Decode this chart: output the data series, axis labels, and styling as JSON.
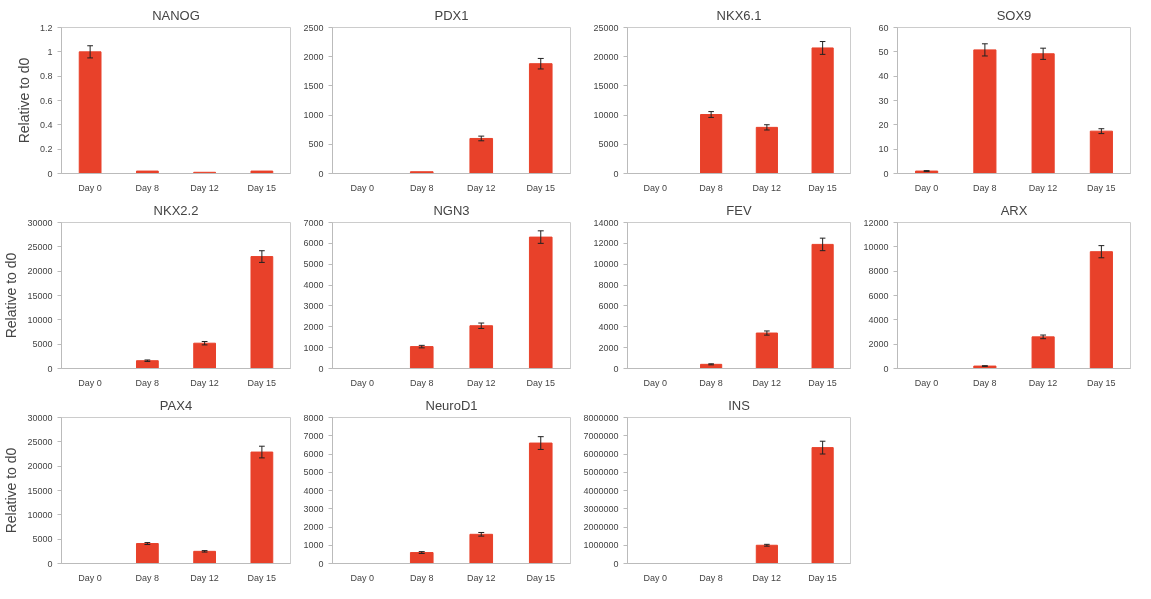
{
  "chart_data": [
    {
      "type": "bar",
      "title": "NANOG",
      "ylabel": "Relative to d0",
      "categories": [
        "Day 0",
        "Day 8",
        "Day 12",
        "Day 15"
      ],
      "values": [
        1,
        0.02,
        0.01,
        0.02
      ],
      "errors": [
        0.05,
        null,
        null,
        null
      ],
      "color": "#e8412a",
      "ylim": [
        0,
        1.2
      ],
      "yticks": [
        0,
        0.2,
        0.4,
        0.6,
        0.8,
        1,
        1.2
      ],
      "grid": false
    },
    {
      "type": "bar",
      "title": "PDX1",
      "categories": [
        "Day 0",
        "Day 8",
        "Day 12",
        "Day 15"
      ],
      "values": [
        0,
        30,
        600,
        1880
      ],
      "errors": [
        null,
        null,
        40,
        90
      ],
      "color": "#e8412a",
      "ylim": [
        0,
        2500
      ],
      "yticks": [
        0,
        500,
        1000,
        1500,
        2000,
        2500
      ],
      "grid": false
    },
    {
      "type": "bar",
      "title": "NKX6.1",
      "categories": [
        "Day 0",
        "Day 8",
        "Day 12",
        "Day 15"
      ],
      "values": [
        0,
        10100,
        7900,
        21500
      ],
      "errors": [
        null,
        500,
        450,
        1100
      ],
      "color": "#e8412a",
      "ylim": [
        0,
        25000
      ],
      "yticks": [
        0,
        5000,
        10000,
        15000,
        20000,
        25000
      ],
      "grid": false
    },
    {
      "type": "bar",
      "title": "SOX9",
      "categories": [
        "Day 0",
        "Day 8",
        "Day 12",
        "Day 15"
      ],
      "values": [
        1,
        50.8,
        49.2,
        17.4
      ],
      "errors": [
        0.2,
        2.5,
        2.3,
        1
      ],
      "color": "#e8412a",
      "ylim": [
        0,
        60
      ],
      "yticks": [
        0,
        10,
        20,
        30,
        40,
        50,
        60
      ],
      "grid": false
    },
    {
      "type": "bar",
      "title": "NKX2.2",
      "ylabel": "Relative to d0",
      "categories": [
        "Day 0",
        "Day 8",
        "Day 12",
        "Day 15"
      ],
      "values": [
        0,
        1600,
        5200,
        23000
      ],
      "errors": [
        null,
        150,
        350,
        1200
      ],
      "color": "#e8412a",
      "ylim": [
        0,
        30000
      ],
      "yticks": [
        0,
        5000,
        10000,
        15000,
        20000,
        25000,
        30000
      ],
      "grid": false
    },
    {
      "type": "bar",
      "title": "NGN3",
      "categories": [
        "Day 0",
        "Day 8",
        "Day 12",
        "Day 15"
      ],
      "values": [
        0,
        1050,
        2050,
        6300
      ],
      "errors": [
        null,
        60,
        130,
        300
      ],
      "color": "#e8412a",
      "ylim": [
        0,
        7000
      ],
      "yticks": [
        0,
        1000,
        2000,
        3000,
        4000,
        5000,
        6000,
        7000
      ],
      "grid": false
    },
    {
      "type": "bar",
      "title": "FEV",
      "categories": [
        "Day 0",
        "Day 8",
        "Day 12",
        "Day 15"
      ],
      "values": [
        0,
        400,
        3400,
        11900
      ],
      "errors": [
        null,
        50,
        200,
        600
      ],
      "color": "#e8412a",
      "ylim": [
        0,
        14000
      ],
      "yticks": [
        0,
        2000,
        4000,
        6000,
        8000,
        10000,
        12000,
        14000
      ],
      "grid": false
    },
    {
      "type": "bar",
      "title": "ARX",
      "categories": [
        "Day 0",
        "Day 8",
        "Day 12",
        "Day 15"
      ],
      "values": [
        0,
        200,
        2600,
        9600
      ],
      "errors": [
        null,
        30,
        150,
        500
      ],
      "color": "#e8412a",
      "ylim": [
        0,
        12000
      ],
      "yticks": [
        0,
        2000,
        4000,
        6000,
        8000,
        10000,
        12000
      ],
      "grid": false
    },
    {
      "type": "bar",
      "title": "PAX4",
      "ylabel": "Relative to d0",
      "categories": [
        "Day 0",
        "Day 8",
        "Day 12",
        "Day 15"
      ],
      "values": [
        0,
        4100,
        2500,
        22900
      ],
      "errors": [
        null,
        200,
        150,
        1200
      ],
      "color": "#e8412a",
      "ylim": [
        0,
        30000
      ],
      "yticks": [
        0,
        5000,
        10000,
        15000,
        20000,
        25000,
        30000
      ],
      "grid": false
    },
    {
      "type": "bar",
      "title": "NeuroD1",
      "categories": [
        "Day 0",
        "Day 8",
        "Day 12",
        "Day 15"
      ],
      "values": [
        0,
        600,
        1600,
        6600
      ],
      "errors": [
        null,
        50,
        100,
        350
      ],
      "color": "#e8412a",
      "ylim": [
        0,
        8000
      ],
      "yticks": [
        0,
        1000,
        2000,
        3000,
        4000,
        5000,
        6000,
        7000,
        8000
      ],
      "grid": false
    },
    {
      "type": "bar",
      "title": "INS",
      "categories": [
        "Day 0",
        "Day 8",
        "Day 12",
        "Day 15"
      ],
      "values": [
        0,
        0,
        1000000,
        6350000
      ],
      "errors": [
        null,
        null,
        50000,
        350000
      ],
      "color": "#e8412a",
      "ylim": [
        0,
        8000000
      ],
      "yticks": [
        0,
        1000000,
        2000000,
        3000000,
        4000000,
        5000000,
        6000000,
        7000000,
        8000000
      ],
      "grid": false
    }
  ]
}
